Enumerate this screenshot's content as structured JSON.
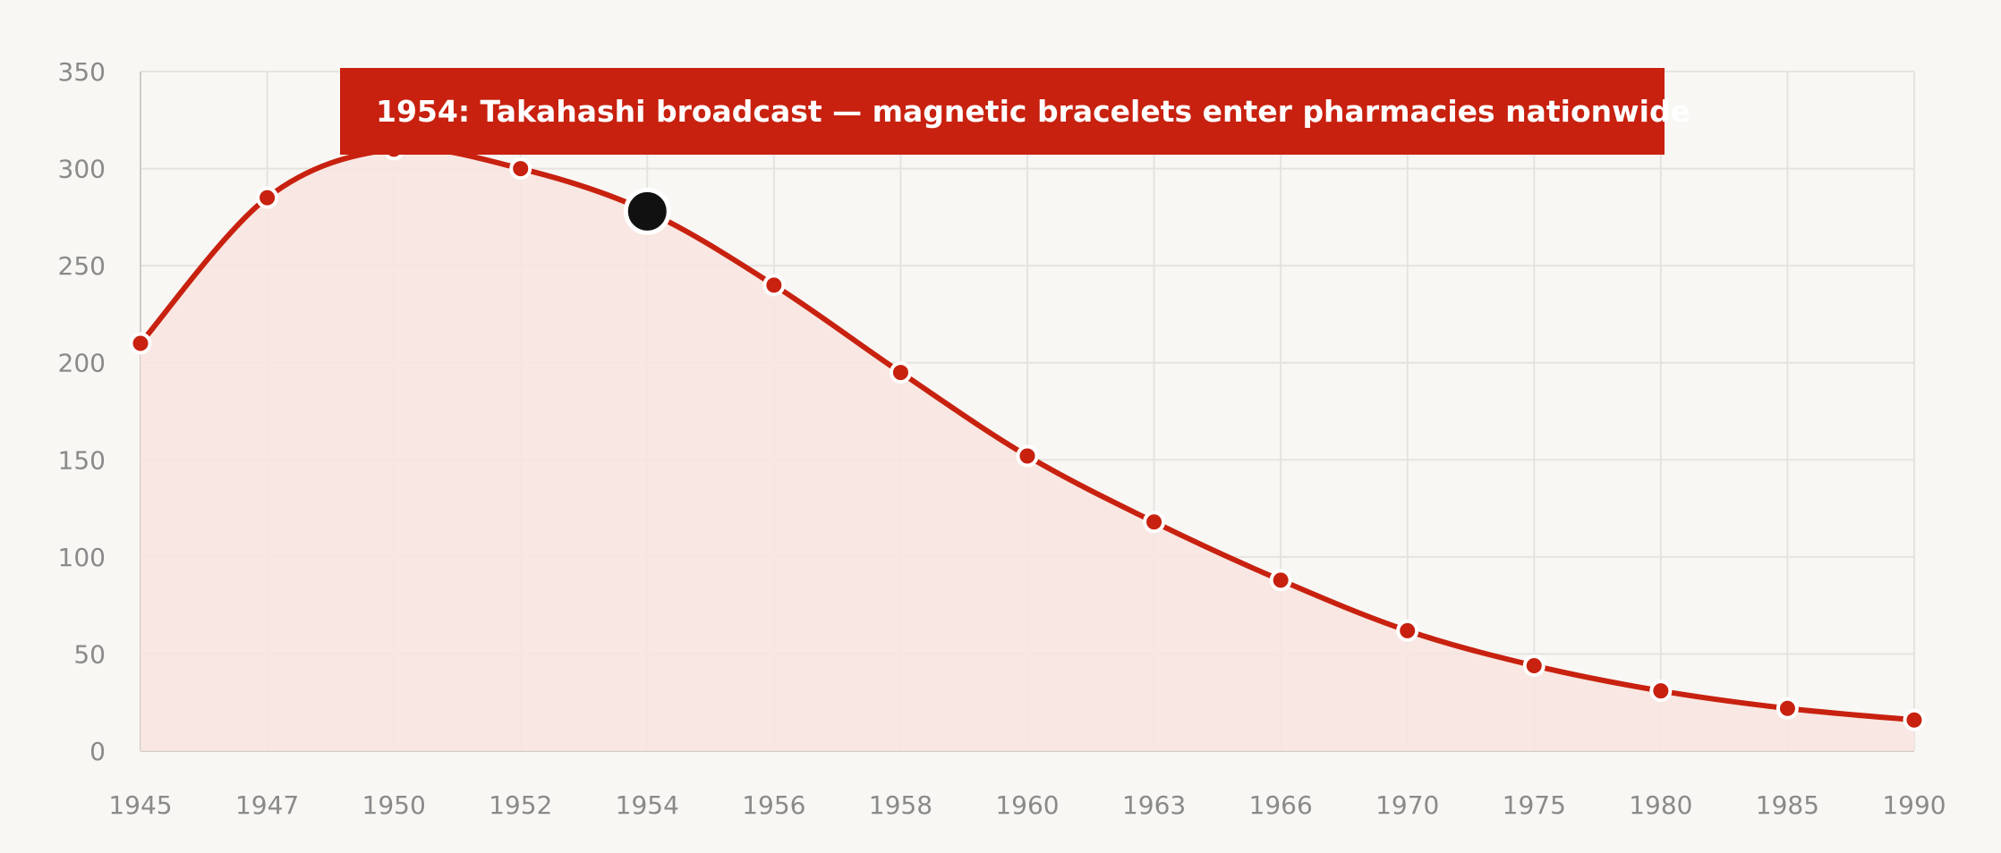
{
  "chart_data": {
    "type": "line",
    "categories": [
      "1945",
      "1947",
      "1950",
      "1952",
      "1954",
      "1956",
      "1958",
      "1960",
      "1963",
      "1966",
      "1970",
      "1975",
      "1980",
      "1985",
      "1990"
    ],
    "series": [
      {
        "values": [
          210,
          285,
          310,
          300,
          278,
          240,
          195,
          152,
          118,
          88,
          62,
          44,
          31,
          22,
          16
        ],
        "color": "#c8210f",
        "fill": "#f7e4e0"
      }
    ],
    "ylim": [
      0,
      350
    ],
    "yticks": [
      0,
      50,
      100,
      150,
      200,
      250,
      300,
      350
    ],
    "grid": true,
    "highlight": {
      "category": "1954",
      "value": 278,
      "color": "#111111"
    },
    "annotation": {
      "text": "1954: Takahashi broadcast — magnetic bracelets enter pharmacies nationwide",
      "background": "#c8210f"
    },
    "colors": {
      "background": "#f8f7f4",
      "grid": "#e6e3df",
      "tick_label": "#8a8a8a"
    }
  }
}
